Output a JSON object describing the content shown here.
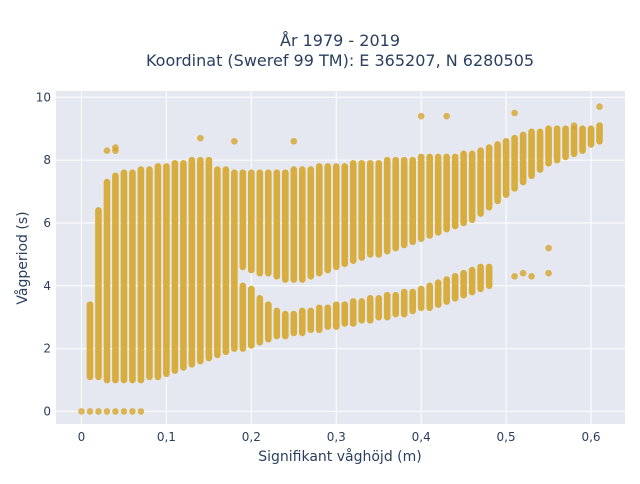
{
  "chart_data": {
    "type": "scatter",
    "title_line1": "År 1979 - 2019",
    "title_line2": "Koordinat (Sweref 99 TM): E 365207, N 6280505",
    "xlabel": "Signifikant våghöjd (m)",
    "ylabel": "Vågperiod (s)",
    "xlim": [
      -0.03,
      0.64
    ],
    "ylim": [
      -0.4,
      10.2
    ],
    "x_ticks": [
      0,
      0.1,
      0.2,
      0.3,
      0.4,
      0.5,
      0.6
    ],
    "x_tick_labels": [
      "0",
      "0,1",
      "0,2",
      "0,3",
      "0,4",
      "0,5",
      "0,6"
    ],
    "y_ticks": [
      0,
      2,
      4,
      6,
      8,
      10
    ],
    "y_tick_labels": [
      "0",
      "2",
      "4",
      "6",
      "8",
      "10"
    ],
    "grid": true,
    "marker_color": "#d4a21f",
    "background_color": "#e5e8f0",
    "grid_color": "#ffffff",
    "x_bin_width": 0.01,
    "series": [
      {
        "values": [
          {
            "x": 0.0,
            "y": 0.0
          },
          {
            "x": 0.01,
            "y": 0.0
          },
          {
            "x": 0.02,
            "y": 0.0
          },
          {
            "x": 0.03,
            "y": 0.0
          },
          {
            "x": 0.04,
            "y": 0.0
          },
          {
            "x": 0.05,
            "y": 0.0
          },
          {
            "x": 0.06,
            "y": 0.0
          },
          {
            "x": 0.07,
            "y": 0.0
          },
          {
            "x": 0.03,
            "y": 8.3
          },
          {
            "x": 0.04,
            "y": 8.4
          },
          {
            "x": 0.04,
            "y": 8.3
          },
          {
            "x": 0.14,
            "y": 8.7
          },
          {
            "x": 0.18,
            "y": 8.6
          },
          {
            "x": 0.25,
            "y": 8.6
          },
          {
            "x": 0.4,
            "y": 9.4
          },
          {
            "x": 0.43,
            "y": 9.4
          },
          {
            "x": 0.51,
            "y": 9.5
          },
          {
            "x": 0.61,
            "y": 9.7
          },
          {
            "x": 0.58,
            "y": 9.1
          },
          {
            "x": 0.55,
            "y": 5.2
          },
          {
            "x": 0.55,
            "y": 4.4
          },
          {
            "x": 0.53,
            "y": 4.3
          },
          {
            "x": 0.52,
            "y": 4.4
          },
          {
            "x": 0.51,
            "y": 4.3
          }
        ],
        "columns": [
          {
            "x": 0.01,
            "ranges": [
              [
                1.1,
                3.4
              ]
            ]
          },
          {
            "x": 0.02,
            "ranges": [
              [
                1.1,
                6.4
              ]
            ]
          },
          {
            "x": 0.03,
            "ranges": [
              [
                1.0,
                7.3
              ]
            ]
          },
          {
            "x": 0.04,
            "ranges": [
              [
                1.0,
                7.5
              ]
            ]
          },
          {
            "x": 0.05,
            "ranges": [
              [
                1.0,
                7.6
              ]
            ]
          },
          {
            "x": 0.06,
            "ranges": [
              [
                1.0,
                7.6
              ]
            ]
          },
          {
            "x": 0.07,
            "ranges": [
              [
                1.0,
                7.7
              ]
            ]
          },
          {
            "x": 0.08,
            "ranges": [
              [
                1.1,
                7.7
              ]
            ]
          },
          {
            "x": 0.09,
            "ranges": [
              [
                1.1,
                7.8
              ]
            ]
          },
          {
            "x": 0.1,
            "ranges": [
              [
                1.2,
                7.8
              ]
            ]
          },
          {
            "x": 0.11,
            "ranges": [
              [
                1.3,
                7.9
              ]
            ]
          },
          {
            "x": 0.12,
            "ranges": [
              [
                1.4,
                7.9
              ]
            ]
          },
          {
            "x": 0.13,
            "ranges": [
              [
                1.5,
                8.0
              ]
            ]
          },
          {
            "x": 0.14,
            "ranges": [
              [
                1.6,
                8.0
              ]
            ]
          },
          {
            "x": 0.15,
            "ranges": [
              [
                1.7,
                8.0
              ]
            ]
          },
          {
            "x": 0.16,
            "ranges": [
              [
                1.8,
                7.7
              ]
            ]
          },
          {
            "x": 0.17,
            "ranges": [
              [
                1.9,
                7.7
              ]
            ]
          },
          {
            "x": 0.18,
            "ranges": [
              [
                2.0,
                7.6
              ]
            ]
          },
          {
            "x": 0.19,
            "ranges": [
              [
                2.0,
                4.0
              ],
              [
                4.6,
                7.6
              ]
            ]
          },
          {
            "x": 0.2,
            "ranges": [
              [
                2.1,
                3.9
              ],
              [
                4.5,
                7.6
              ]
            ]
          },
          {
            "x": 0.21,
            "ranges": [
              [
                2.2,
                3.6
              ],
              [
                4.4,
                7.6
              ]
            ]
          },
          {
            "x": 0.22,
            "ranges": [
              [
                2.3,
                3.4
              ],
              [
                4.4,
                7.6
              ]
            ]
          },
          {
            "x": 0.23,
            "ranges": [
              [
                2.4,
                3.2
              ],
              [
                4.3,
                7.6
              ]
            ]
          },
          {
            "x": 0.24,
            "ranges": [
              [
                2.4,
                3.1
              ],
              [
                4.2,
                7.6
              ]
            ]
          },
          {
            "x": 0.25,
            "ranges": [
              [
                2.5,
                3.1
              ],
              [
                4.2,
                7.7
              ]
            ]
          },
          {
            "x": 0.26,
            "ranges": [
              [
                2.5,
                3.2
              ],
              [
                4.2,
                7.7
              ]
            ]
          },
          {
            "x": 0.27,
            "ranges": [
              [
                2.6,
                3.2
              ],
              [
                4.3,
                7.7
              ]
            ]
          },
          {
            "x": 0.28,
            "ranges": [
              [
                2.6,
                3.3
              ],
              [
                4.4,
                7.8
              ]
            ]
          },
          {
            "x": 0.29,
            "ranges": [
              [
                2.7,
                3.3
              ],
              [
                4.5,
                7.8
              ]
            ]
          },
          {
            "x": 0.3,
            "ranges": [
              [
                2.7,
                3.4
              ],
              [
                4.6,
                7.8
              ]
            ]
          },
          {
            "x": 0.31,
            "ranges": [
              [
                2.8,
                3.4
              ],
              [
                4.7,
                7.8
              ]
            ]
          },
          {
            "x": 0.32,
            "ranges": [
              [
                2.8,
                3.5
              ],
              [
                4.8,
                7.9
              ]
            ]
          },
          {
            "x": 0.33,
            "ranges": [
              [
                2.9,
                3.5
              ],
              [
                4.9,
                7.9
              ]
            ]
          },
          {
            "x": 0.34,
            "ranges": [
              [
                2.9,
                3.6
              ],
              [
                5.0,
                7.9
              ]
            ]
          },
          {
            "x": 0.35,
            "ranges": [
              [
                3.0,
                3.6
              ],
              [
                5.0,
                7.9
              ]
            ]
          },
          {
            "x": 0.36,
            "ranges": [
              [
                3.0,
                3.7
              ],
              [
                5.1,
                8.0
              ]
            ]
          },
          {
            "x": 0.37,
            "ranges": [
              [
                3.1,
                3.7
              ],
              [
                5.2,
                8.0
              ]
            ]
          },
          {
            "x": 0.38,
            "ranges": [
              [
                3.1,
                3.8
              ],
              [
                5.3,
                8.0
              ]
            ]
          },
          {
            "x": 0.39,
            "ranges": [
              [
                3.2,
                3.8
              ],
              [
                5.4,
                8.0
              ]
            ]
          },
          {
            "x": 0.4,
            "ranges": [
              [
                3.3,
                3.9
              ],
              [
                5.5,
                8.1
              ]
            ]
          },
          {
            "x": 0.41,
            "ranges": [
              [
                3.3,
                4.0
              ],
              [
                5.6,
                8.1
              ]
            ]
          },
          {
            "x": 0.42,
            "ranges": [
              [
                3.4,
                4.1
              ],
              [
                5.7,
                8.1
              ]
            ]
          },
          {
            "x": 0.43,
            "ranges": [
              [
                3.5,
                4.2
              ],
              [
                5.8,
                8.1
              ]
            ]
          },
          {
            "x": 0.44,
            "ranges": [
              [
                3.6,
                4.3
              ],
              [
                5.9,
                8.1
              ]
            ]
          },
          {
            "x": 0.45,
            "ranges": [
              [
                3.7,
                4.4
              ],
              [
                6.0,
                8.2
              ]
            ]
          },
          {
            "x": 0.46,
            "ranges": [
              [
                3.8,
                4.5
              ],
              [
                6.1,
                8.2
              ]
            ]
          },
          {
            "x": 0.47,
            "ranges": [
              [
                3.9,
                4.6
              ],
              [
                6.3,
                8.3
              ]
            ]
          },
          {
            "x": 0.48,
            "ranges": [
              [
                4.0,
                4.6
              ],
              [
                6.5,
                8.4
              ]
            ]
          },
          {
            "x": 0.49,
            "ranges": [
              [
                6.7,
                8.5
              ]
            ]
          },
          {
            "x": 0.5,
            "ranges": [
              [
                6.9,
                8.6
              ]
            ]
          },
          {
            "x": 0.51,
            "ranges": [
              [
                7.1,
                8.7
              ]
            ]
          },
          {
            "x": 0.52,
            "ranges": [
              [
                7.3,
                8.8
              ]
            ]
          },
          {
            "x": 0.53,
            "ranges": [
              [
                7.5,
                8.9
              ]
            ]
          },
          {
            "x": 0.54,
            "ranges": [
              [
                7.7,
                8.9
              ]
            ]
          },
          {
            "x": 0.55,
            "ranges": [
              [
                7.9,
                9.0
              ]
            ]
          },
          {
            "x": 0.56,
            "ranges": [
              [
                8.0,
                9.0
              ]
            ]
          },
          {
            "x": 0.57,
            "ranges": [
              [
                8.1,
                9.0
              ]
            ]
          },
          {
            "x": 0.58,
            "ranges": [
              [
                8.2,
                9.0
              ]
            ]
          },
          {
            "x": 0.59,
            "ranges": [
              [
                8.3,
                9.0
              ]
            ]
          },
          {
            "x": 0.6,
            "ranges": [
              [
                8.5,
                9.0
              ]
            ]
          },
          {
            "x": 0.61,
            "ranges": [
              [
                8.6,
                9.1
              ]
            ]
          }
        ]
      }
    ]
  }
}
